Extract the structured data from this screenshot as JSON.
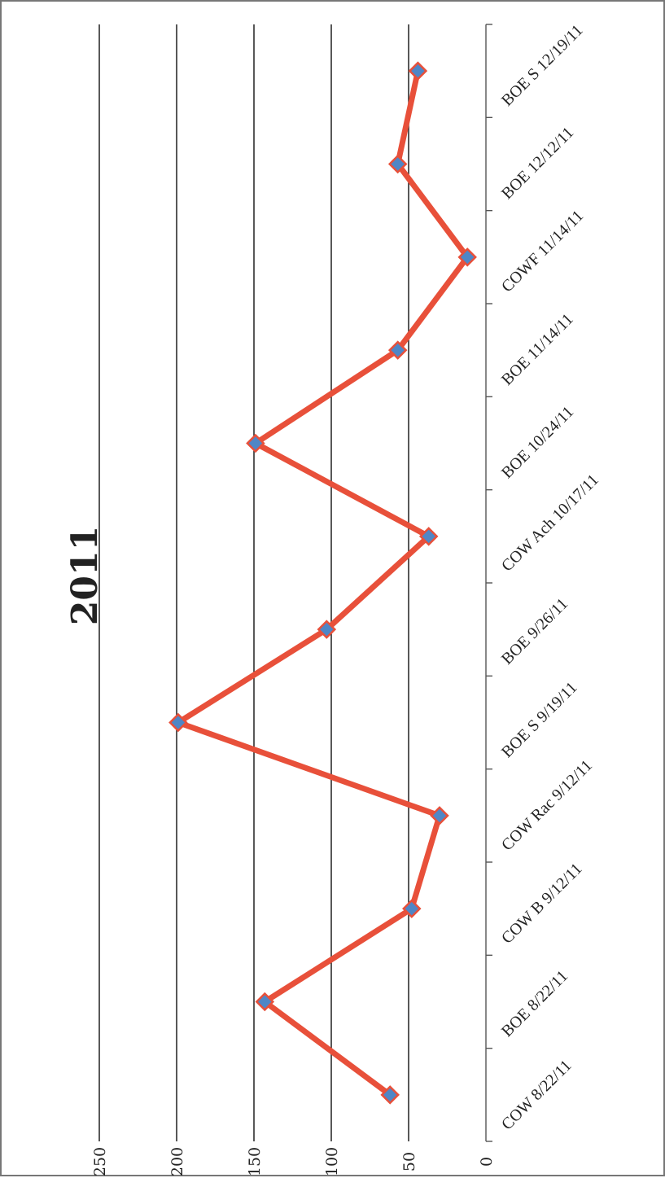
{
  "chart_data": {
    "type": "line",
    "title": "2011",
    "orientation": "rotated-90",
    "categories": [
      "COW 8/22/11",
      "BOE 8/22/11",
      "COW B 9/12/11",
      "COW Rac 9/12/11",
      "BOE S 9/19/11",
      "BOE 9/26/11",
      "COW Ach 10/17/11",
      "BOE 10/24/11",
      "BOE 11/14/11",
      "COWF 11/14/11",
      "BOE 12/12/11",
      "BOE S 12/19/11"
    ],
    "series": [
      {
        "values": [
          62,
          143,
          48,
          30,
          199,
          103,
          37,
          149,
          57,
          12,
          57,
          44
        ]
      }
    ],
    "y_ticks": [
      "0",
      "50",
      "100",
      "150",
      "200",
      "250"
    ],
    "ylim": [
      0,
      250
    ],
    "grid": true,
    "legend": "none",
    "xlabel": "",
    "ylabel": ""
  },
  "colors": {
    "line": "#e8503a",
    "marker_fill": "#4f86c6",
    "marker_stroke": "#e8503a",
    "grid": "#111111",
    "axis": "#555555"
  }
}
